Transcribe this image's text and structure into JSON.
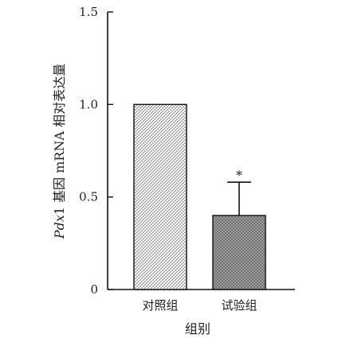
{
  "chart_data": {
    "type": "bar",
    "categories": [
      "对照组",
      "试验组"
    ],
    "values": [
      1.0,
      0.4
    ],
    "error_bars": [
      null,
      0.18
    ],
    "annotations": [
      null,
      "*"
    ],
    "xlabel": "组别",
    "ylabel_italic": "Pdx",
    "ylabel_rest": "1 基因 mRNA 相对表达量",
    "ylim": [
      0,
      1.5
    ],
    "yticks": [
      {
        "value": 0,
        "label": "0"
      },
      {
        "value": 0.5,
        "label": "0.5"
      },
      {
        "value": 1.0,
        "label": "1.0"
      },
      {
        "value": 1.5,
        "label": "1.5"
      }
    ],
    "grid": false,
    "bar_fills": [
      "light-crosshatch",
      "dark-crosshatch"
    ]
  }
}
